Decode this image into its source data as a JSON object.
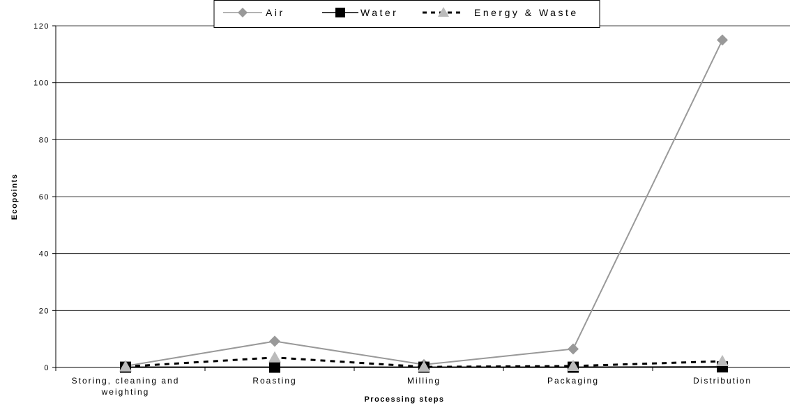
{
  "chart_data": {
    "type": "line",
    "title": "",
    "xlabel": "Processing steps",
    "ylabel": "Ecopoints",
    "ylim": [
      0,
      120
    ],
    "yticks": [
      0,
      20,
      40,
      60,
      80,
      100,
      120
    ],
    "grid": "horizontal",
    "legend_position": "top-center",
    "categories": [
      [
        "Storing, cleaning and",
        "weighting"
      ],
      [
        "Roasting"
      ],
      [
        "Milling"
      ],
      [
        "Packaging"
      ],
      [
        "Distribution"
      ]
    ],
    "series": [
      {
        "name": "Air",
        "marker": "diamond",
        "line_style": "solid",
        "line_color": "#999999",
        "marker_color": "#999999",
        "values": [
          0.5,
          9.2,
          1.0,
          6.5,
          115
        ]
      },
      {
        "name": "Water",
        "marker": "square",
        "line_style": "solid",
        "line_color": "#000000",
        "marker_color": "#000000",
        "values": [
          0.1,
          0.1,
          0.1,
          0.1,
          0.2
        ]
      },
      {
        "name": "Energy & Waste",
        "marker": "triangle",
        "line_style": "dashed",
        "line_color": "#000000",
        "marker_color": "#bbbbbb",
        "values": [
          0.3,
          3.5,
          0.2,
          0.5,
          2.2
        ]
      }
    ]
  }
}
